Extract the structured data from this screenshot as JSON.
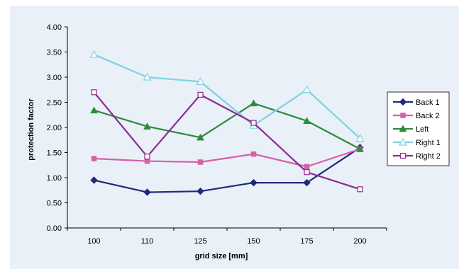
{
  "chart_data": {
    "type": "line",
    "title": "",
    "xlabel": "grid size [mm]",
    "ylabel": "protection factor",
    "categories": [
      "100",
      "110",
      "125",
      "150",
      "175",
      "200"
    ],
    "ylim": [
      0,
      4
    ],
    "yticks": [
      "0.00",
      "0.50",
      "1.00",
      "1.50",
      "2.00",
      "2.50",
      "3.00",
      "3.50",
      "4.00"
    ],
    "grid": false,
    "legend_position": "right",
    "series": [
      {
        "name": "Back 1",
        "color": "#1f2a7a",
        "marker": "diamond-filled",
        "values": [
          0.95,
          0.71,
          0.73,
          0.9,
          0.9,
          1.6
        ]
      },
      {
        "name": "Back 2",
        "color": "#d85fa8",
        "marker": "square-filled",
        "values": [
          1.38,
          1.33,
          1.31,
          1.47,
          1.22,
          1.57
        ]
      },
      {
        "name": "Left",
        "color": "#2e8b3a",
        "marker": "triangle-filled",
        "values": [
          2.34,
          2.02,
          1.8,
          2.48,
          2.13,
          1.57
        ]
      },
      {
        "name": "Right 1",
        "color": "#7fd0e6",
        "marker": "triangle-open",
        "values": [
          3.45,
          3.0,
          2.91,
          2.04,
          2.75,
          1.78
        ]
      },
      {
        "name": "Right 2",
        "color": "#8e2a8e",
        "marker": "square-open",
        "values": [
          2.7,
          1.42,
          2.65,
          2.09,
          1.11,
          0.77
        ]
      }
    ]
  }
}
